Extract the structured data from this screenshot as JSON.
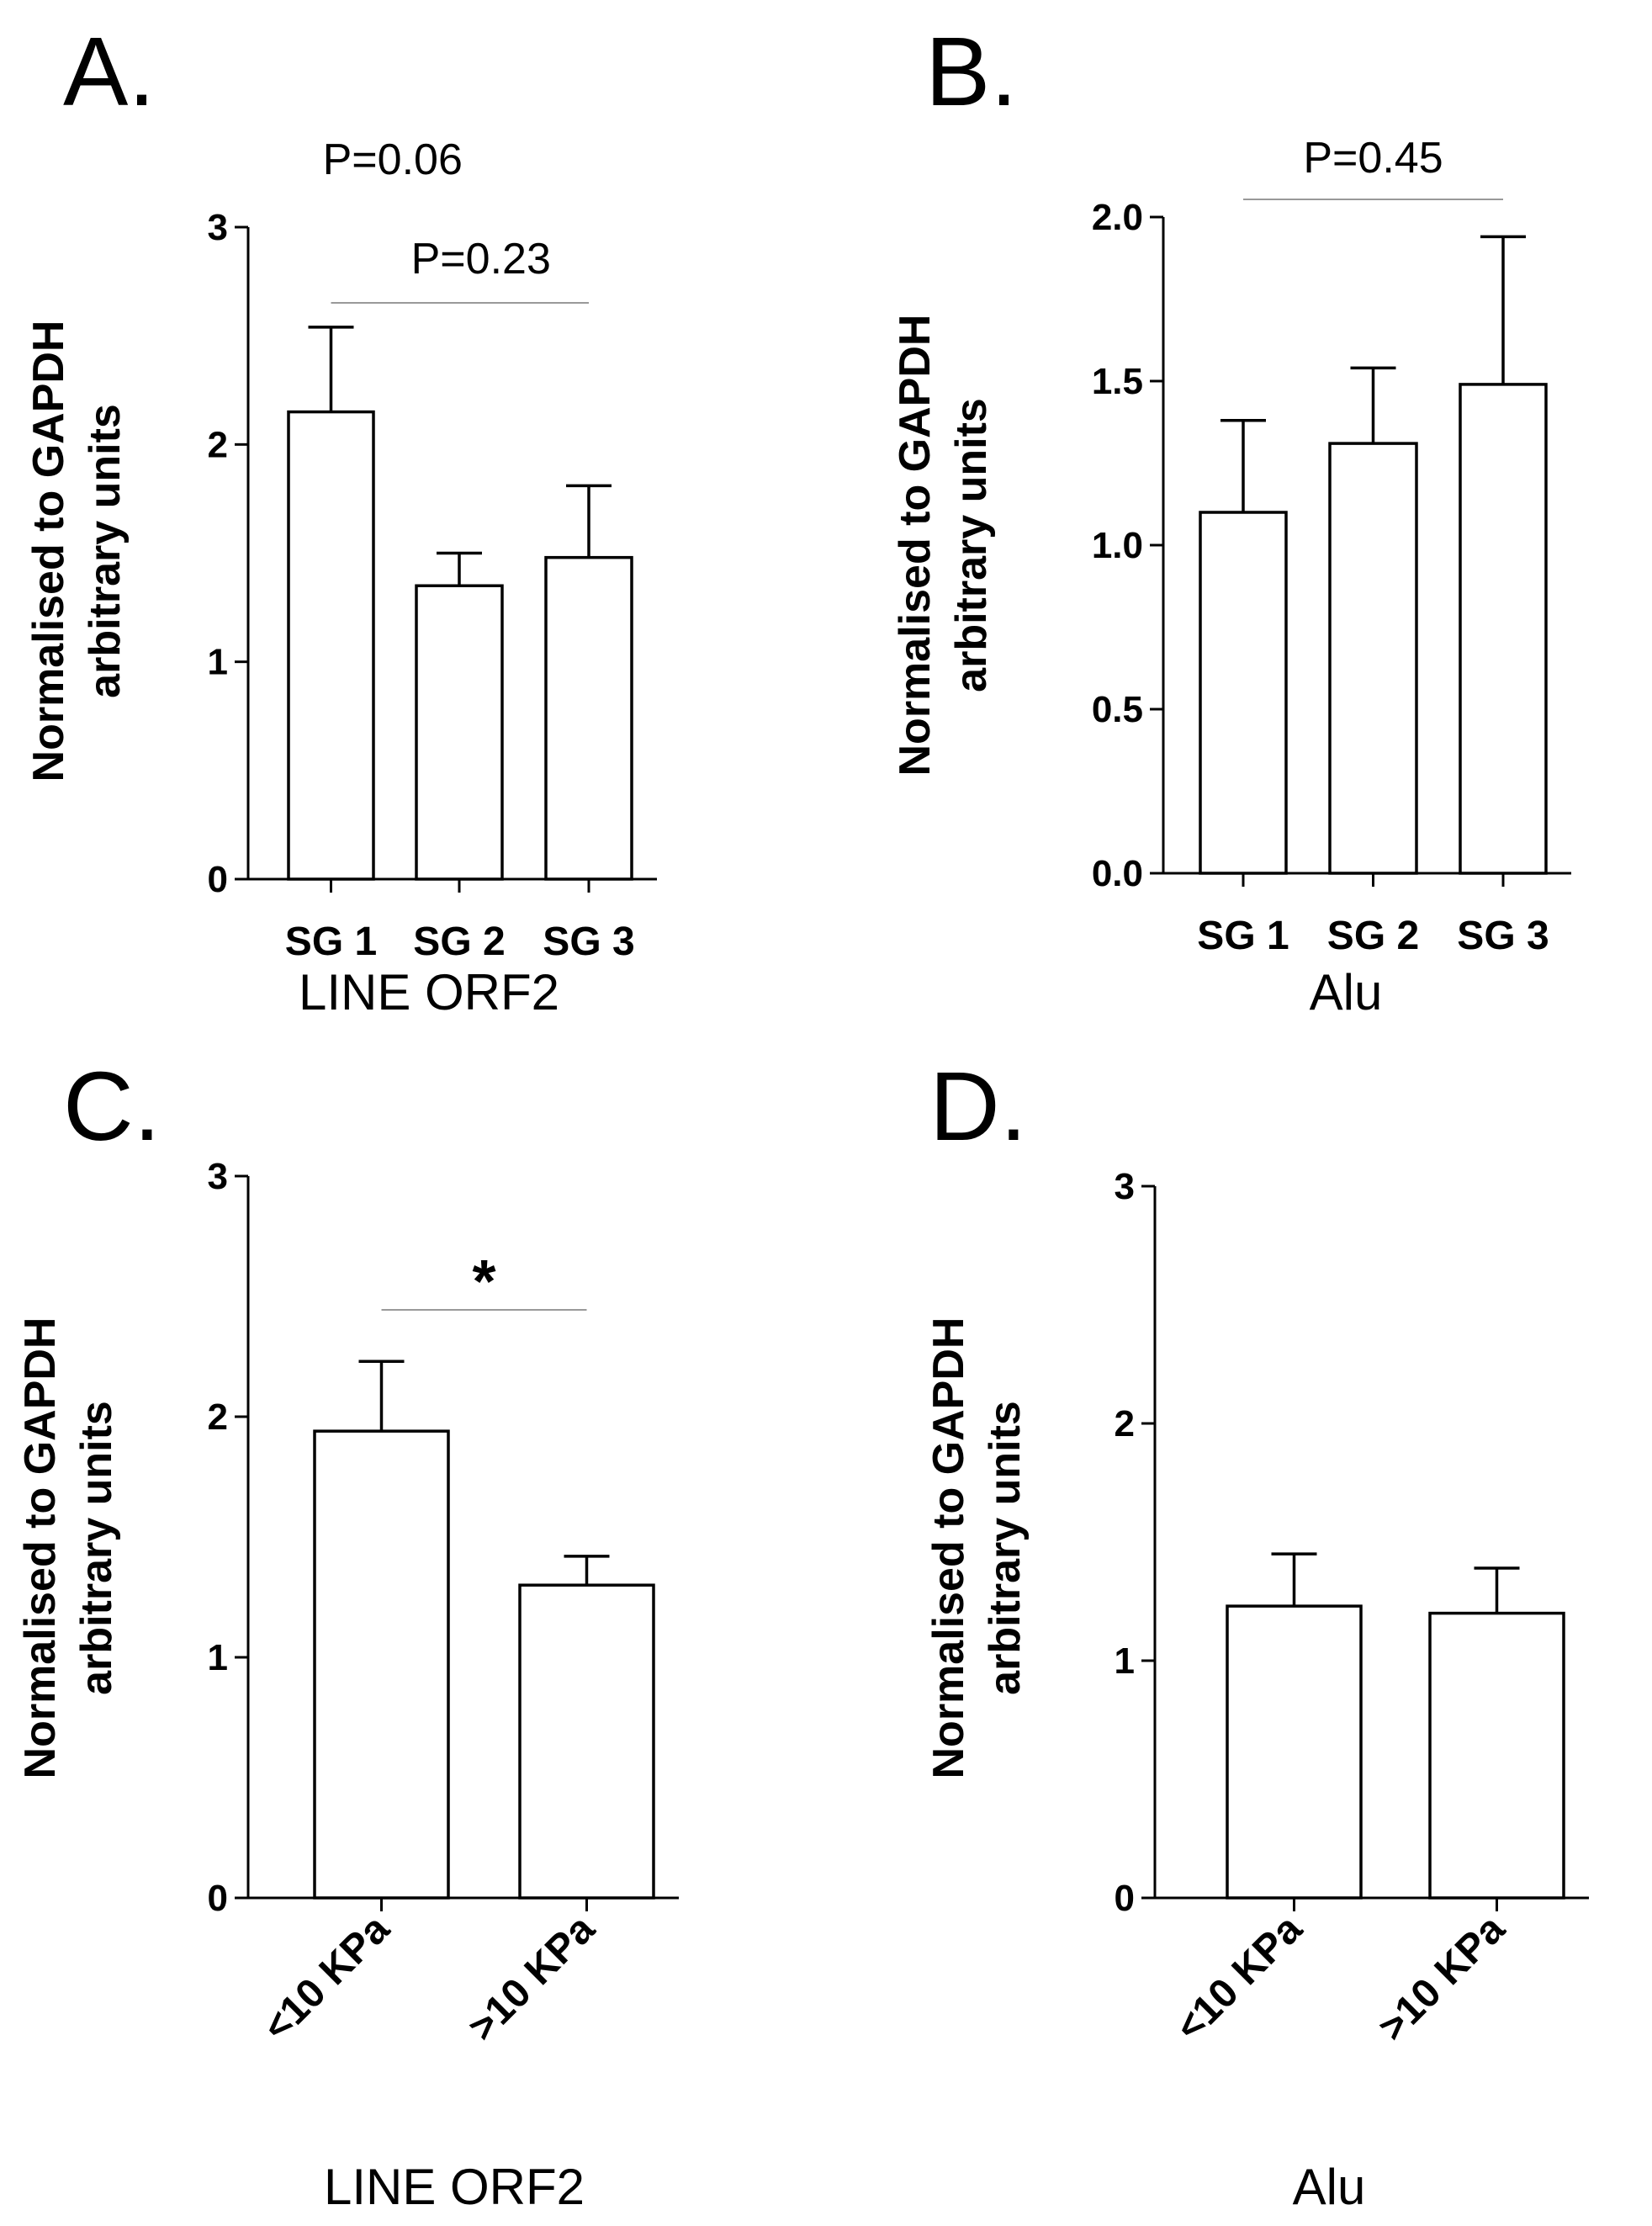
{
  "chart_data": [
    {
      "type": "bar",
      "panel": "A.",
      "title": "",
      "xlabel": "LINE ORF2",
      "ylabel_lines": [
        "Normalised to GAPDH",
        "arbitrary units"
      ],
      "ylim": [
        0,
        3
      ],
      "yticks": [
        "0",
        "1",
        "2",
        "3"
      ],
      "categories": [
        "SG 1",
        "SG 2",
        "SG 3"
      ],
      "values": [
        2.15,
        1.35,
        1.48
      ],
      "errors": [
        0.39,
        0.15,
        0.33
      ],
      "annotations": [
        {
          "text": "P=0.06",
          "from": 0,
          "to": 2,
          "line": false
        },
        {
          "text": "P=0.23",
          "from": 0,
          "to": 2,
          "line": true
        }
      ]
    },
    {
      "type": "bar",
      "panel": "B.",
      "title": "",
      "xlabel": "Alu",
      "ylabel_lines": [
        "Normalised to GAPDH",
        "arbitrary units"
      ],
      "ylim": [
        0,
        2
      ],
      "yticks": [
        "0.0",
        "0.5",
        "1.0",
        "1.5",
        "2.0"
      ],
      "categories": [
        "SG 1",
        "SG 2",
        "SG 3"
      ],
      "values": [
        1.1,
        1.31,
        1.49
      ],
      "errors": [
        0.28,
        0.23,
        0.45
      ],
      "annotations": [
        {
          "text": "P=0.45",
          "from": 0,
          "to": 2,
          "line": true
        }
      ]
    },
    {
      "type": "bar",
      "panel": "C.",
      "title": "",
      "xlabel": "LINE ORF2",
      "ylabel_lines": [
        "Normalised to GAPDH",
        "arbitrary units"
      ],
      "ylim": [
        0,
        3
      ],
      "yticks": [
        "0",
        "1",
        "2",
        "3"
      ],
      "categories": [
        "<10 KPa",
        ">10 KPa"
      ],
      "values": [
        1.94,
        1.3
      ],
      "errors": [
        0.29,
        0.12
      ],
      "annotations": [
        {
          "text": "*",
          "from": 0,
          "to": 1,
          "line": true
        }
      ]
    },
    {
      "type": "bar",
      "panel": "D.",
      "title": "",
      "xlabel": "Alu",
      "ylabel_lines": [
        "Normalised to GAPDH",
        "arbitrary units"
      ],
      "ylim": [
        0,
        3
      ],
      "yticks": [
        "0",
        "1",
        "2",
        "3"
      ],
      "categories": [
        "<10 KPa",
        ">10 KPa"
      ],
      "values": [
        1.23,
        1.2
      ],
      "errors": [
        0.22,
        0.19
      ],
      "annotations": []
    }
  ]
}
